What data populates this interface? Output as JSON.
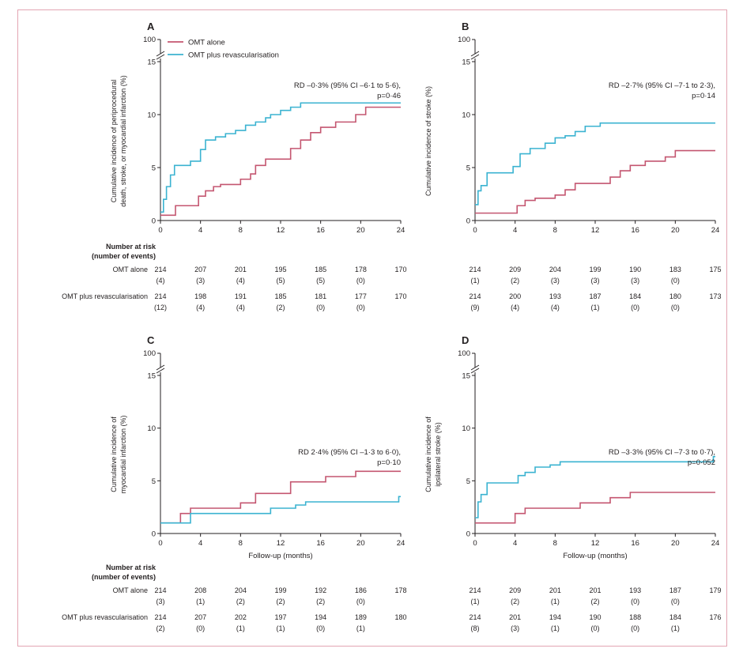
{
  "legend": {
    "omt": "OMT alone",
    "rev": "OMT plus revascularisation"
  },
  "colors": {
    "omt": "#c45670",
    "rev": "#3bb3d1"
  },
  "risk_header": [
    "Number at risk",
    "(number of events)"
  ],
  "risk_labels": {
    "omt": "OMT alone",
    "rev": "OMT plus revascularisation"
  },
  "x_label": "Follow-up (months)",
  "chart_data": [
    {
      "type": "line",
      "panel": "A",
      "ylabel": [
        "Cumulative incidence of periprocedural",
        "death, stroke, or myocardial infarction (%)"
      ],
      "xlabel": "",
      "x_ticks": [
        0,
        4,
        8,
        12,
        16,
        20,
        24
      ],
      "y_ticks": [
        0,
        5,
        10,
        15
      ],
      "y_break_tick": 100,
      "xlim": [
        0,
        24
      ],
      "ylim": [
        0,
        15
      ],
      "annotation": [
        "RD –0·3% (95% CI –6·1 to 5·6),",
        "p=0·46"
      ],
      "series": [
        {
          "name": "OMT alone",
          "color": "#c45670",
          "x": [
            0,
            0.8,
            1.5,
            3.2,
            3.8,
            4.5,
            5.3,
            6.0,
            7.0,
            8.0,
            9.0,
            9.5,
            10.5,
            12.5,
            13.0,
            14.0,
            15.0,
            16.0,
            17.5,
            19.0,
            19.5,
            20.5,
            24.0
          ],
          "y": [
            0.5,
            0.5,
            1.4,
            1.4,
            2.3,
            2.8,
            3.2,
            3.4,
            3.4,
            3.9,
            4.4,
            5.2,
            5.8,
            5.8,
            6.8,
            7.6,
            8.3,
            8.8,
            9.3,
            9.3,
            10.0,
            10.7,
            10.7
          ]
        },
        {
          "name": "OMT plus revascularisation",
          "color": "#3bb3d1",
          "x": [
            0,
            0.3,
            0.6,
            1.0,
            1.4,
            2.0,
            3.0,
            4.0,
            4.5,
            5.5,
            6.5,
            7.5,
            8.5,
            9.5,
            10.5,
            11.0,
            12.0,
            13.0,
            14.0,
            24.0
          ],
          "y": [
            0.8,
            2.0,
            3.2,
            4.3,
            5.2,
            5.2,
            5.6,
            6.7,
            7.6,
            7.9,
            8.2,
            8.5,
            9.0,
            9.3,
            9.7,
            10.0,
            10.4,
            10.7,
            11.1,
            11.1
          ]
        }
      ],
      "risk": {
        "omt": {
          "n": [
            "214",
            "207",
            "201",
            "195",
            "185",
            "178",
            "170"
          ],
          "events": [
            "(4)",
            "(3)",
            "(4)",
            "(5)",
            "(5)",
            "(0)"
          ]
        },
        "rev": {
          "n": [
            "214",
            "198",
            "191",
            "185",
            "181",
            "177",
            "170"
          ],
          "events": [
            "(12)",
            "(4)",
            "(4)",
            "(2)",
            "(0)",
            "(0)"
          ]
        }
      }
    },
    {
      "type": "line",
      "panel": "B",
      "ylabel": [
        "Cumulative incidence of stroke (%)"
      ],
      "xlabel": "",
      "x_ticks": [
        0,
        4,
        8,
        12,
        16,
        20,
        24
      ],
      "y_ticks": [
        0,
        5,
        10,
        15
      ],
      "y_break_tick": 100,
      "xlim": [
        0,
        24
      ],
      "ylim": [
        0,
        15
      ],
      "annotation": [
        "RD –2·7% (95% CI –7·1 to 2·3),",
        "p=0·14"
      ],
      "series": [
        {
          "name": "OMT alone",
          "color": "#c45670",
          "x": [
            0,
            0.5,
            3.5,
            4.2,
            5.0,
            6.0,
            7.5,
            8.0,
            9.0,
            10.0,
            12.5,
            13.5,
            14.5,
            15.5,
            17.0,
            19.0,
            20.0,
            24.0
          ],
          "y": [
            0.7,
            0.7,
            0.7,
            1.4,
            1.9,
            2.1,
            2.1,
            2.4,
            2.9,
            3.5,
            3.5,
            4.1,
            4.7,
            5.2,
            5.6,
            6.0,
            6.6,
            6.6
          ]
        },
        {
          "name": "OMT plus revascularisation",
          "color": "#3bb3d1",
          "x": [
            0,
            0.3,
            0.6,
            1.2,
            3.0,
            3.8,
            4.5,
            5.5,
            7.0,
            8.0,
            9.0,
            10.0,
            11.0,
            12.5,
            24.0
          ],
          "y": [
            1.5,
            2.8,
            3.3,
            4.5,
            4.5,
            5.1,
            6.3,
            6.8,
            7.3,
            7.8,
            8.0,
            8.4,
            8.9,
            9.2,
            9.2
          ]
        }
      ],
      "risk": {
        "omt": {
          "n": [
            "214",
            "209",
            "204",
            "199",
            "190",
            "183",
            "175"
          ],
          "events": [
            "(1)",
            "(2)",
            "(3)",
            "(3)",
            "(3)",
            "(0)"
          ]
        },
        "rev": {
          "n": [
            "214",
            "200",
            "193",
            "187",
            "184",
            "180",
            "173"
          ],
          "events": [
            "(9)",
            "(4)",
            "(4)",
            "(1)",
            "(0)",
            "(0)"
          ]
        }
      }
    },
    {
      "type": "line",
      "panel": "C",
      "ylabel": [
        "Cumulative incidence of",
        "myocardial infarction (%)"
      ],
      "xlabel": "Follow-up (months)",
      "x_ticks": [
        0,
        4,
        8,
        12,
        16,
        20,
        24
      ],
      "y_ticks": [
        0,
        5,
        10,
        15
      ],
      "y_break_tick": 100,
      "xlim": [
        0,
        24
      ],
      "ylim": [
        0,
        15
      ],
      "annotation": [
        "RD 2·4% (95% CI –1·3 to 6·0),",
        "p=0·10"
      ],
      "series": [
        {
          "name": "OMT alone",
          "color": "#c45670",
          "x": [
            0,
            1.5,
            2.0,
            3.0,
            7.5,
            8.0,
            9.5,
            13.0,
            15.0,
            16.5,
            18.0,
            19.5,
            24.0
          ],
          "y": [
            1.0,
            1.0,
            1.9,
            2.4,
            2.4,
            2.9,
            3.8,
            4.9,
            4.9,
            5.4,
            5.4,
            5.9,
            5.9
          ]
        },
        {
          "name": "OMT plus revascularisation",
          "color": "#3bb3d1",
          "x": [
            0,
            2.5,
            3.0,
            10.5,
            11.0,
            13.5,
            14.5,
            23.5,
            23.8,
            24.0
          ],
          "y": [
            1.0,
            1.0,
            1.9,
            1.9,
            2.4,
            2.7,
            3.0,
            3.0,
            3.5,
            3.5
          ]
        }
      ],
      "risk": {
        "omt": {
          "n": [
            "214",
            "208",
            "204",
            "199",
            "192",
            "186",
            "178"
          ],
          "events": [
            "(3)",
            "(1)",
            "(2)",
            "(2)",
            "(2)",
            "(0)"
          ]
        },
        "rev": {
          "n": [
            "214",
            "207",
            "202",
            "197",
            "194",
            "189",
            "180"
          ],
          "events": [
            "(2)",
            "(0)",
            "(1)",
            "(1)",
            "(0)",
            "(1)"
          ]
        }
      }
    },
    {
      "type": "line",
      "panel": "D",
      "ylabel": [
        "Cumulative incidence of",
        "ipsilateral stroke (%)"
      ],
      "xlabel": "Follow-up (months)",
      "x_ticks": [
        0,
        4,
        8,
        12,
        16,
        20,
        24
      ],
      "y_ticks": [
        0,
        5,
        10,
        15
      ],
      "y_break_tick": 100,
      "xlim": [
        0,
        24
      ],
      "ylim": [
        0,
        15
      ],
      "annotation": [
        "RD –3·3% (95% CI –7·3 to 0·7),",
        "p=0·052"
      ],
      "series": [
        {
          "name": "OMT alone",
          "color": "#c45670",
          "x": [
            0,
            0.5,
            3.0,
            4.0,
            5.0,
            6.0,
            9.5,
            10.5,
            12.8,
            13.5,
            14.5,
            15.5,
            24.0
          ],
          "y": [
            1.0,
            1.0,
            1.0,
            1.9,
            2.4,
            2.4,
            2.4,
            2.9,
            2.9,
            3.4,
            3.4,
            3.9,
            3.9
          ]
        },
        {
          "name": "OMT plus revascularisation",
          "color": "#3bb3d1",
          "x": [
            0,
            0.3,
            0.6,
            1.2,
            3.5,
            4.3,
            5.0,
            6.0,
            7.5,
            8.5,
            23.5,
            23.8,
            24.0
          ],
          "y": [
            1.5,
            3.0,
            3.7,
            4.8,
            4.8,
            5.5,
            5.8,
            6.3,
            6.5,
            6.8,
            6.8,
            7.3,
            7.3
          ]
        }
      ],
      "risk": {
        "omt": {
          "n": [
            "214",
            "209",
            "201",
            "201",
            "193",
            "187",
            "179"
          ],
          "events": [
            "(1)",
            "(2)",
            "(1)",
            "(2)",
            "(0)",
            "(0)"
          ]
        },
        "rev": {
          "n": [
            "214",
            "201",
            "194",
            "190",
            "188",
            "184",
            "176"
          ],
          "events": [
            "(8)",
            "(3)",
            "(1)",
            "(0)",
            "(0)",
            "(1)"
          ]
        }
      }
    }
  ]
}
